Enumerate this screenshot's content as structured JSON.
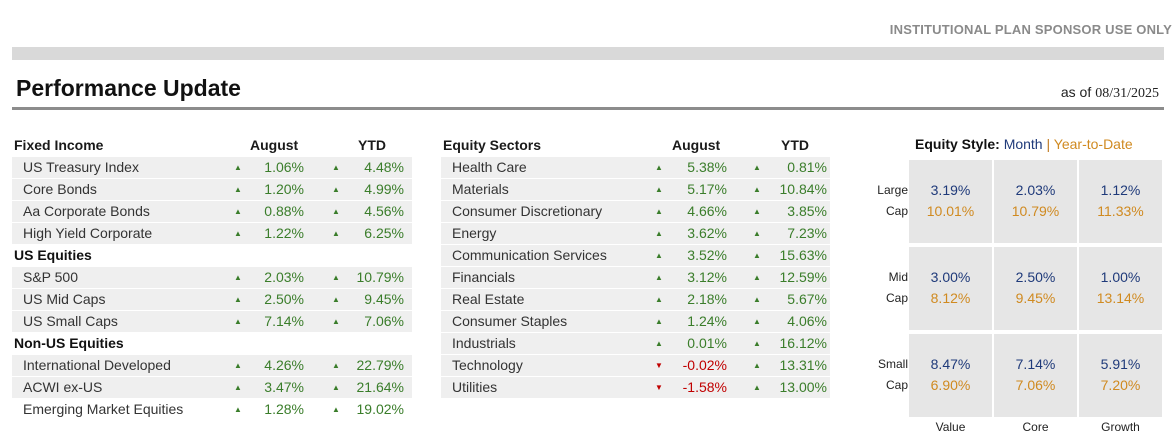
{
  "banner": "INSTITUTIONAL PLAN SPONSOR USE ONLY",
  "title": "Performance Update",
  "as_of_label": "as of",
  "as_of_date": "08/31/2025",
  "colors": {
    "positive": "#3a7d2a",
    "negative": "#c00000",
    "month": "#1f3a7a",
    "ytd": "#d08a20"
  },
  "left_table": {
    "headers": {
      "name": "Fixed Income",
      "month": "August",
      "ytd": "YTD"
    },
    "rows": [
      {
        "name": "US Treasury Index",
        "month": "1.06%",
        "ytd": "4.48%",
        "month_dir": "up",
        "ytd_dir": "up"
      },
      {
        "name": "Core Bonds",
        "month": "1.20%",
        "ytd": "4.99%",
        "month_dir": "up",
        "ytd_dir": "up"
      },
      {
        "name": "Aa Corporate Bonds",
        "month": "0.88%",
        "ytd": "4.56%",
        "month_dir": "up",
        "ytd_dir": "up"
      },
      {
        "name": "High Yield Corporate",
        "month": "1.22%",
        "ytd": "6.25%",
        "month_dir": "up",
        "ytd_dir": "up"
      },
      {
        "section": "US Equities"
      },
      {
        "name": "S&P 500",
        "month": "2.03%",
        "ytd": "10.79%",
        "month_dir": "up",
        "ytd_dir": "up"
      },
      {
        "name": "US Mid Caps",
        "month": "2.50%",
        "ytd": "9.45%",
        "month_dir": "up",
        "ytd_dir": "up"
      },
      {
        "name": "US Small Caps",
        "month": "7.14%",
        "ytd": "7.06%",
        "month_dir": "up",
        "ytd_dir": "up"
      },
      {
        "section": "Non-US Equities"
      },
      {
        "name": "International Developed",
        "month": "4.26%",
        "ytd": "22.79%",
        "month_dir": "up",
        "ytd_dir": "up"
      },
      {
        "name": "ACWI ex-US",
        "month": "3.47%",
        "ytd": "21.64%",
        "month_dir": "up",
        "ytd_dir": "up"
      },
      {
        "name": "Emerging Market Equities",
        "month": "1.28%",
        "ytd": "19.02%",
        "month_dir": "up",
        "ytd_dir": "up"
      }
    ]
  },
  "sector_table": {
    "headers": {
      "name": "Equity Sectors",
      "month": "August",
      "ytd": "YTD"
    },
    "rows": [
      {
        "name": "Health Care",
        "month": "5.38%",
        "ytd": "0.81%",
        "month_dir": "up",
        "ytd_dir": "up"
      },
      {
        "name": "Materials",
        "month": "5.17%",
        "ytd": "10.84%",
        "month_dir": "up",
        "ytd_dir": "up"
      },
      {
        "name": "Consumer Discretionary",
        "month": "4.66%",
        "ytd": "3.85%",
        "month_dir": "up",
        "ytd_dir": "up"
      },
      {
        "name": "Energy",
        "month": "3.62%",
        "ytd": "7.23%",
        "month_dir": "up",
        "ytd_dir": "up"
      },
      {
        "name": "Communication Services",
        "month": "3.52%",
        "ytd": "15.63%",
        "month_dir": "up",
        "ytd_dir": "up"
      },
      {
        "name": "Financials",
        "month": "3.12%",
        "ytd": "12.59%",
        "month_dir": "up",
        "ytd_dir": "up"
      },
      {
        "name": "Real Estate",
        "month": "2.18%",
        "ytd": "5.67%",
        "month_dir": "up",
        "ytd_dir": "up"
      },
      {
        "name": "Consumer Staples",
        "month": "1.24%",
        "ytd": "4.06%",
        "month_dir": "up",
        "ytd_dir": "up"
      },
      {
        "name": "Industrials",
        "month": "0.01%",
        "ytd": "16.12%",
        "month_dir": "up",
        "ytd_dir": "up"
      },
      {
        "name": "Technology",
        "month": "-0.02%",
        "ytd": "13.31%",
        "month_dir": "down",
        "ytd_dir": "up"
      },
      {
        "name": "Utilities",
        "month": "-1.58%",
        "ytd": "13.00%",
        "month_dir": "down",
        "ytd_dir": "up"
      }
    ]
  },
  "equity_style": {
    "label": "Equity Style:",
    "month_label": "Month",
    "separator": "|",
    "ytd_label": "Year-to-Date",
    "row_labels": [
      [
        "Large",
        "Cap"
      ],
      [
        "Mid",
        "Cap"
      ],
      [
        "Small",
        "Cap"
      ]
    ],
    "col_labels": [
      "Value",
      "Core",
      "Growth"
    ],
    "grid": [
      [
        {
          "month": "3.19%",
          "ytd": "10.01%"
        },
        {
          "month": "2.03%",
          "ytd": "10.79%"
        },
        {
          "month": "1.12%",
          "ytd": "11.33%"
        }
      ],
      [
        {
          "month": "3.00%",
          "ytd": "8.12%"
        },
        {
          "month": "2.50%",
          "ytd": "9.45%"
        },
        {
          "month": "1.00%",
          "ytd": "13.14%"
        }
      ],
      [
        {
          "month": "8.47%",
          "ytd": "6.90%"
        },
        {
          "month": "7.14%",
          "ytd": "7.06%"
        },
        {
          "month": "5.91%",
          "ytd": "7.20%"
        }
      ]
    ]
  }
}
